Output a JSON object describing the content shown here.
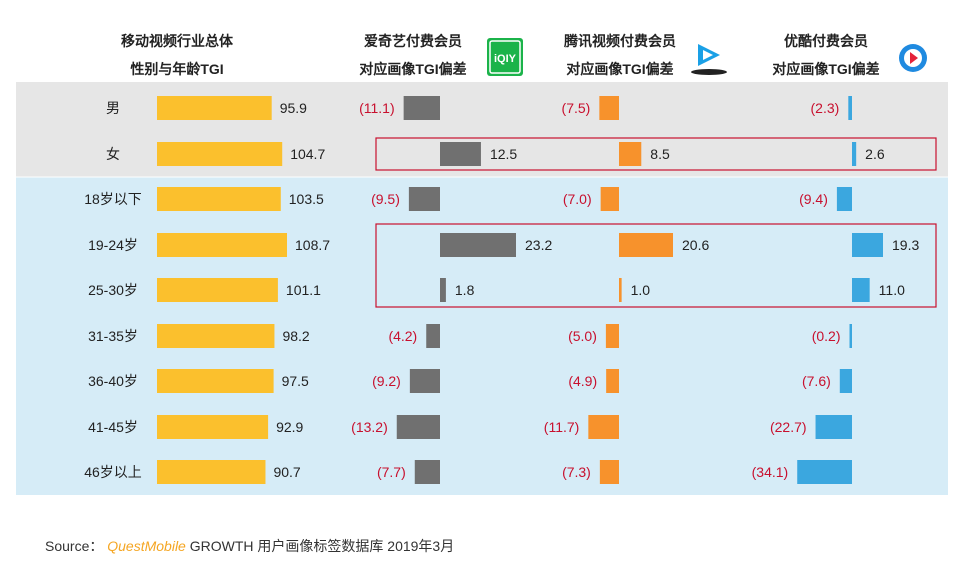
{
  "chart_data": {
    "type": "bar",
    "header": {
      "main": [
        "移动视频行业总体",
        "性别与年龄TGI"
      ],
      "series_headers": [
        [
          "爱奇艺付费会员",
          "对应画像TGI偏差"
        ],
        [
          "腾讯视频付费会员",
          "对应画像TGI偏差"
        ],
        [
          "优酷付费会员",
          "对应画像TGI偏差"
        ]
      ]
    },
    "categories": [
      "男",
      "女",
      "18岁以下",
      "19-24岁",
      "25-30岁",
      "31-35岁",
      "36-40岁",
      "41-45岁",
      "46岁以上"
    ],
    "overall_tgi": [
      95.9,
      104.7,
      103.5,
      108.7,
      101.1,
      98.2,
      97.5,
      92.9,
      90.7
    ],
    "series": [
      {
        "values": [
          -11.1,
          12.5,
          -9.5,
          23.2,
          1.8,
          -4.2,
          -9.2,
          -13.2,
          -7.7
        ],
        "color": "#707070"
      },
      {
        "values": [
          -7.5,
          8.5,
          -7.0,
          20.6,
          1.0,
          -5.0,
          -4.9,
          -11.7,
          -7.3
        ],
        "color": "#f7922c"
      },
      {
        "values": [
          -2.3,
          2.6,
          -9.4,
          19.3,
          11.0,
          -0.2,
          -7.6,
          -22.7,
          -34.1
        ],
        "color": "#3ba7df"
      }
    ],
    "overall_color": "#fbc02d",
    "negative_color": "#c8102e",
    "band_colors": {
      "gender": "#e6e6e6",
      "age": "#d6ecf7"
    },
    "highlight_box_color": "#c8102e"
  },
  "icons": [
    "iqiyi-logo-icon",
    "tencent-video-logo-icon",
    "youku-logo-icon"
  ],
  "iqiyi_logo_text": "iQIY",
  "footer": {
    "prefix": "Source：",
    "brand": "QuestMobile",
    "rest": "GROWTH 用户画像标签数据库 2019年3月"
  }
}
